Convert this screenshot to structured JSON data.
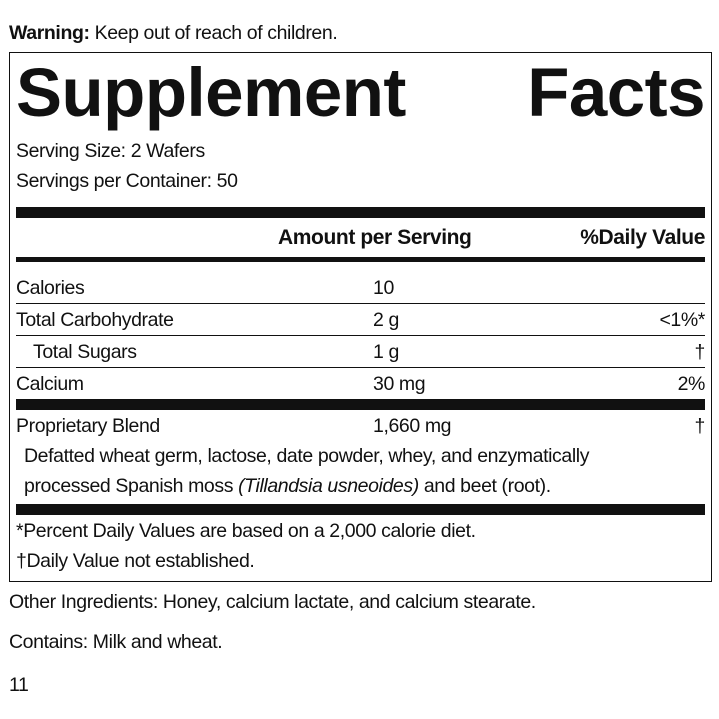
{
  "warning": {
    "label": "Warning:",
    "text": "Keep out of reach of children."
  },
  "title": {
    "word1": "Supplement",
    "word2": "Facts"
  },
  "serving_size": "Serving Size:  2 Wafers",
  "servings_per_container": "Servings per Container: 50",
  "headers": {
    "amount": "Amount per Serving",
    "dv": "%Daily Value"
  },
  "rows": [
    {
      "name": "Calories",
      "amount": "10",
      "dv": ""
    },
    {
      "name": "Total Carbohydrate",
      "amount": "2 g",
      "dv": "<1%*"
    },
    {
      "name": "Total Sugars",
      "amount": "1 g",
      "dv": "†"
    },
    {
      "name": "Calcium",
      "amount": "30 mg",
      "dv": "2%"
    }
  ],
  "blend": {
    "name": "Proprietary Blend",
    "amount": "1,660 mg",
    "dv": "†",
    "desc1": "Defatted wheat germ, lactose, date powder, whey, and enzymatically",
    "desc2a": "processed Spanish moss ",
    "desc2b": "(Tillandsia usneoides)",
    "desc2c": " and beet (root)."
  },
  "footnotes": [
    "*Percent Daily Values are based on a 2,000 calorie diet.",
    "†Daily Value not established."
  ],
  "other_ingredients": "Other Ingredients: Honey, calcium lactate, and calcium stearate.",
  "contains": "Contains: Milk and wheat.",
  "page_number": "11"
}
